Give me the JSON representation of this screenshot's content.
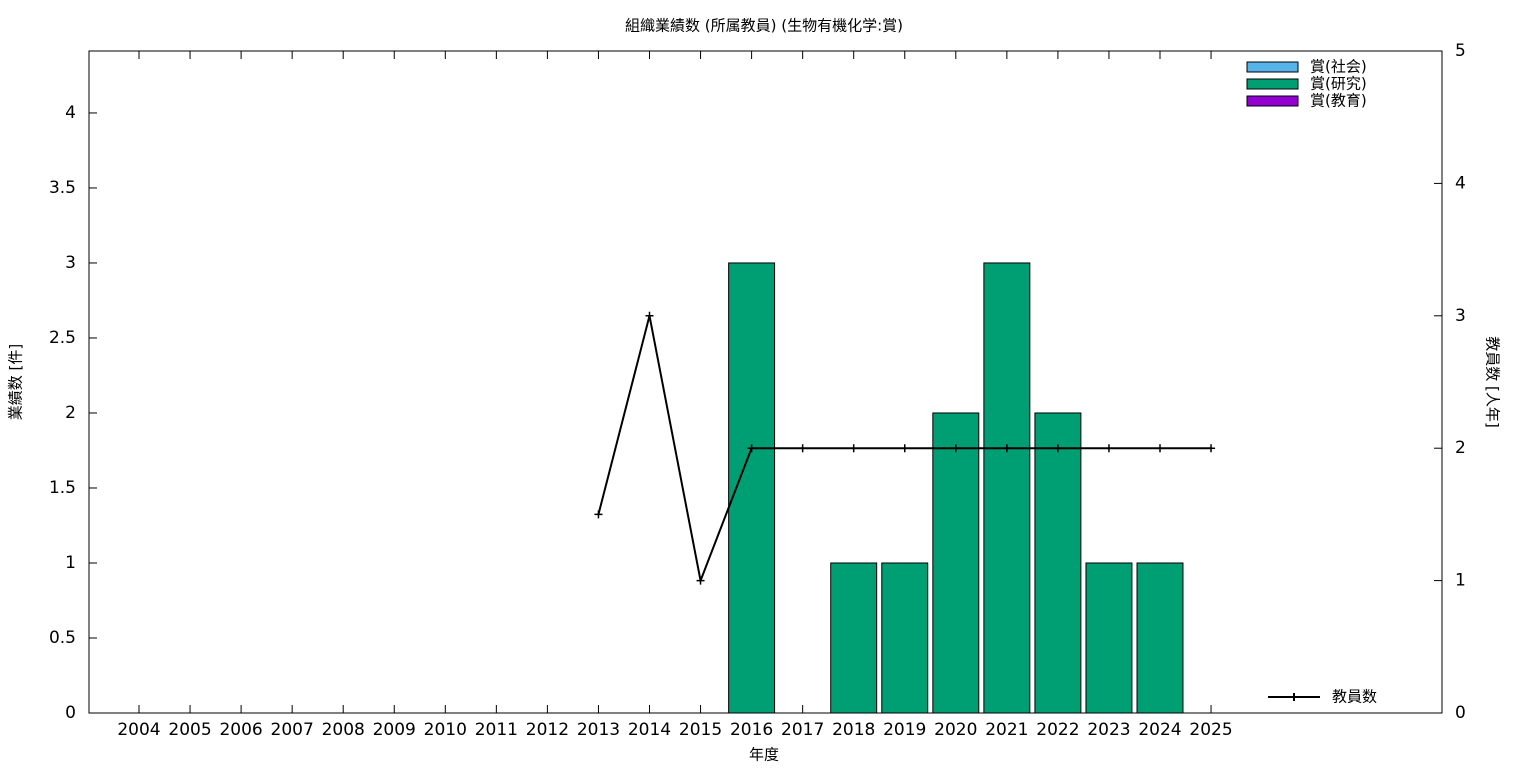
{
  "chart_data": {
    "type": "bar",
    "title": "組織業績数 (所属教員) (生物有機化学:賞)",
    "x_label": "年度",
    "y_label": "業績数 [件]",
    "y2_label": "教員数 [人年]",
    "categories": [
      "2004",
      "2005",
      "2006",
      "2007",
      "2008",
      "2009",
      "2010",
      "2011",
      "2012",
      "2013",
      "2014",
      "2015",
      "2016",
      "2017",
      "2018",
      "2019",
      "2020",
      "2021",
      "2022",
      "2023",
      "2024",
      "2025"
    ],
    "stacked": true,
    "legend": "upper right",
    "series": [
      {
        "name": "賞(社会)",
        "color": "#56b4e9",
        "values": [
          0,
          0,
          0,
          0,
          0,
          0,
          0,
          0,
          0,
          0,
          0,
          0,
          0,
          0,
          0,
          0,
          0,
          0,
          0,
          0,
          0,
          0
        ]
      },
      {
        "name": "賞(研究)",
        "color": "#009e73",
        "values": [
          0,
          0,
          0,
          0,
          0,
          0,
          0,
          0,
          0,
          0,
          0,
          0,
          3,
          0,
          1,
          1,
          2,
          3,
          2,
          1,
          1,
          0
        ]
      },
      {
        "name": "賞(教育)",
        "color": "#9400d3",
        "values": [
          0,
          0,
          0,
          0,
          0,
          0,
          0,
          0,
          0,
          0,
          0,
          0,
          0,
          0,
          0,
          0,
          0,
          0,
          0,
          0,
          0,
          0
        ]
      },
      {
        "name": "教員数",
        "type": "line",
        "axis": "y2",
        "color": "#000000",
        "values": [
          null,
          null,
          null,
          null,
          null,
          null,
          null,
          null,
          null,
          1.5,
          3,
          1,
          2,
          2,
          2,
          2,
          2,
          2,
          2,
          2,
          2,
          2
        ]
      }
    ],
    "ylim": [
      0,
      4.413
    ],
    "yticks": [
      0,
      0.5,
      1,
      1.5,
      2,
      2.5,
      3,
      3.5,
      4
    ],
    "y2lim": [
      0,
      5
    ],
    "y2ticks": [
      0,
      1,
      2,
      3,
      4,
      5
    ]
  }
}
